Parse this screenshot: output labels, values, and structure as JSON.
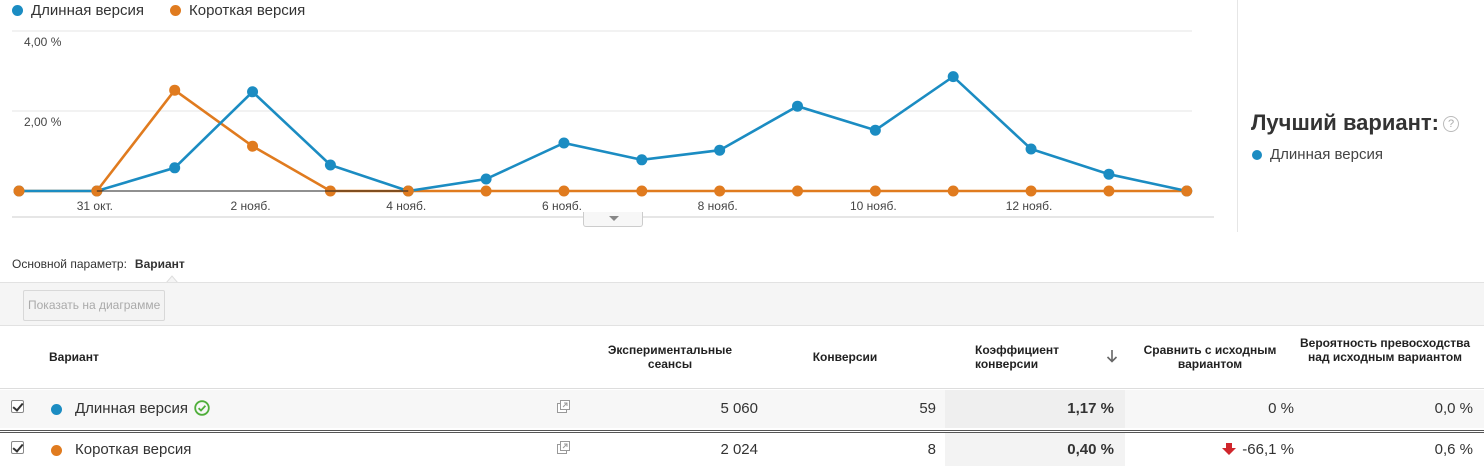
{
  "legend": [
    {
      "name": "Длинная версия",
      "color": "#1b8cc2"
    },
    {
      "name": "Короткая версия",
      "color": "#e07b1f"
    }
  ],
  "chart_data": {
    "type": "line",
    "y_tick_labels": [
      "4,00 %",
      "2,00 %"
    ],
    "ylim": [
      0,
      4.0
    ],
    "x_tick_labels": [
      "31 окт.",
      "2 нояб.",
      "4 нояб.",
      "6 нояб.",
      "8 нояб.",
      "10 нояб.",
      "12 нояб."
    ],
    "x": [
      "30 окт.",
      "31 окт.",
      "1 нояб.",
      "2 нояб.",
      "3 нояб.",
      "4 нояб.",
      "5 нояб.",
      "6 нояб.",
      "7 нояб.",
      "8 нояб.",
      "9 нояб.",
      "10 нояб.",
      "11 нояб.",
      "12 нояб.",
      "13 нояб.",
      "14 нояб."
    ],
    "series": [
      {
        "name": "Длинная версия",
        "color": "#1b8cc2",
        "values": [
          0,
          0,
          0.58,
          2.48,
          0.65,
          0,
          0.3,
          1.2,
          0.78,
          1.02,
          2.12,
          1.52,
          2.86,
          1.05,
          0.42,
          0
        ]
      },
      {
        "name": "Короткая версия",
        "color": "#e07b1f",
        "values": [
          0,
          0,
          2.52,
          1.12,
          0,
          0,
          0,
          0,
          0,
          0,
          0,
          0,
          0,
          0,
          0,
          0
        ]
      }
    ],
    "grid": true
  },
  "best_variant": {
    "title": "Лучший вариант:",
    "help": "?",
    "name": "Длинная версия",
    "color": "#1b8cc2"
  },
  "dimension": {
    "label": "Основной параметр:",
    "value": "Вариант"
  },
  "toolbar": {
    "show_button": "Показать на диаграмме"
  },
  "table": {
    "headers": {
      "variant": "Вариант",
      "sessions": "Экспериментальные сеансы",
      "conversions": "Конверсии",
      "rate": "Коэффициент конверсии",
      "compare": "Сравнить с исходным вариантом",
      "probability": "Вероятность превосходства над исходным вариантом"
    },
    "rows": [
      {
        "name": "Длинная версия",
        "color": "#1b8cc2",
        "sessions": "5 060",
        "conversions": "59",
        "rate": "1,17 %",
        "compare": "0 %",
        "probability": "0,0 %",
        "best": true
      },
      {
        "name": "Короткая версия",
        "color": "#e07b1f",
        "sessions": "2 024",
        "conversions": "8",
        "rate": "0,40 %",
        "compare": "-66,1 %",
        "probability": "0,6 %",
        "best": false
      }
    ]
  }
}
